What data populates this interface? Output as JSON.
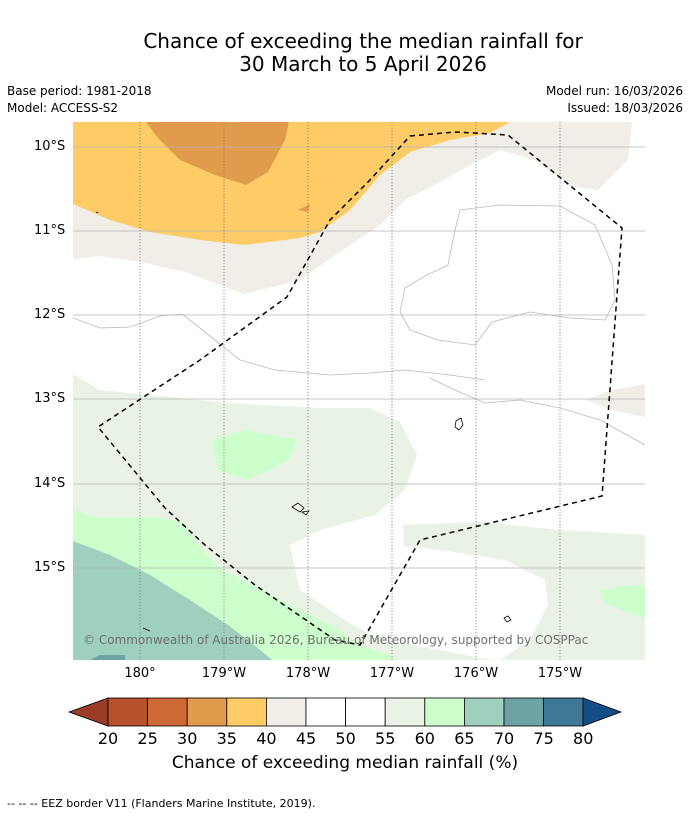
{
  "title": {
    "line1": "Chance of exceeding the median rainfall for",
    "line2": "30 March to 5 April 2026"
  },
  "meta": {
    "base_period": "Base period: 1981-2018",
    "model": "Model: ACCESS-S2",
    "model_run": "Model run: 16/03/2026",
    "issued": "Issued: 18/03/2026"
  },
  "map": {
    "latitude_labels": [
      "10°S",
      "11°S",
      "12°S",
      "13°S",
      "14°S",
      "15°S"
    ],
    "longitude_labels": [
      "180°",
      "179°W",
      "178°W",
      "177°W",
      "176°W",
      "175°W"
    ],
    "copyright": "© Commonwealth of Australia 2026, Bureau of Meteorology, supported by COSPPac"
  },
  "colorbar": {
    "title": "Chance of exceeding median rainfall (%)",
    "labels": [
      "20",
      "25",
      "30",
      "35",
      "40",
      "45",
      "50",
      "55",
      "60",
      "65",
      "70",
      "75",
      "80"
    ],
    "colors": [
      "#b5522d",
      "#cf6937",
      "#e19b4c",
      "#fdcc66",
      "#f1ede7",
      "#ffffff",
      "#ffffff",
      "#e8f3e6",
      "#cdffcd",
      "#9ed0bd",
      "#6ea3a5",
      "#3f7797"
    ],
    "low_arrow_color": "#9a3c28",
    "high_arrow_color": "#154e86"
  },
  "legend": {
    "eez": "-- -- -- EEZ border V11 (Flanders Marine Institute, 2019)."
  }
}
